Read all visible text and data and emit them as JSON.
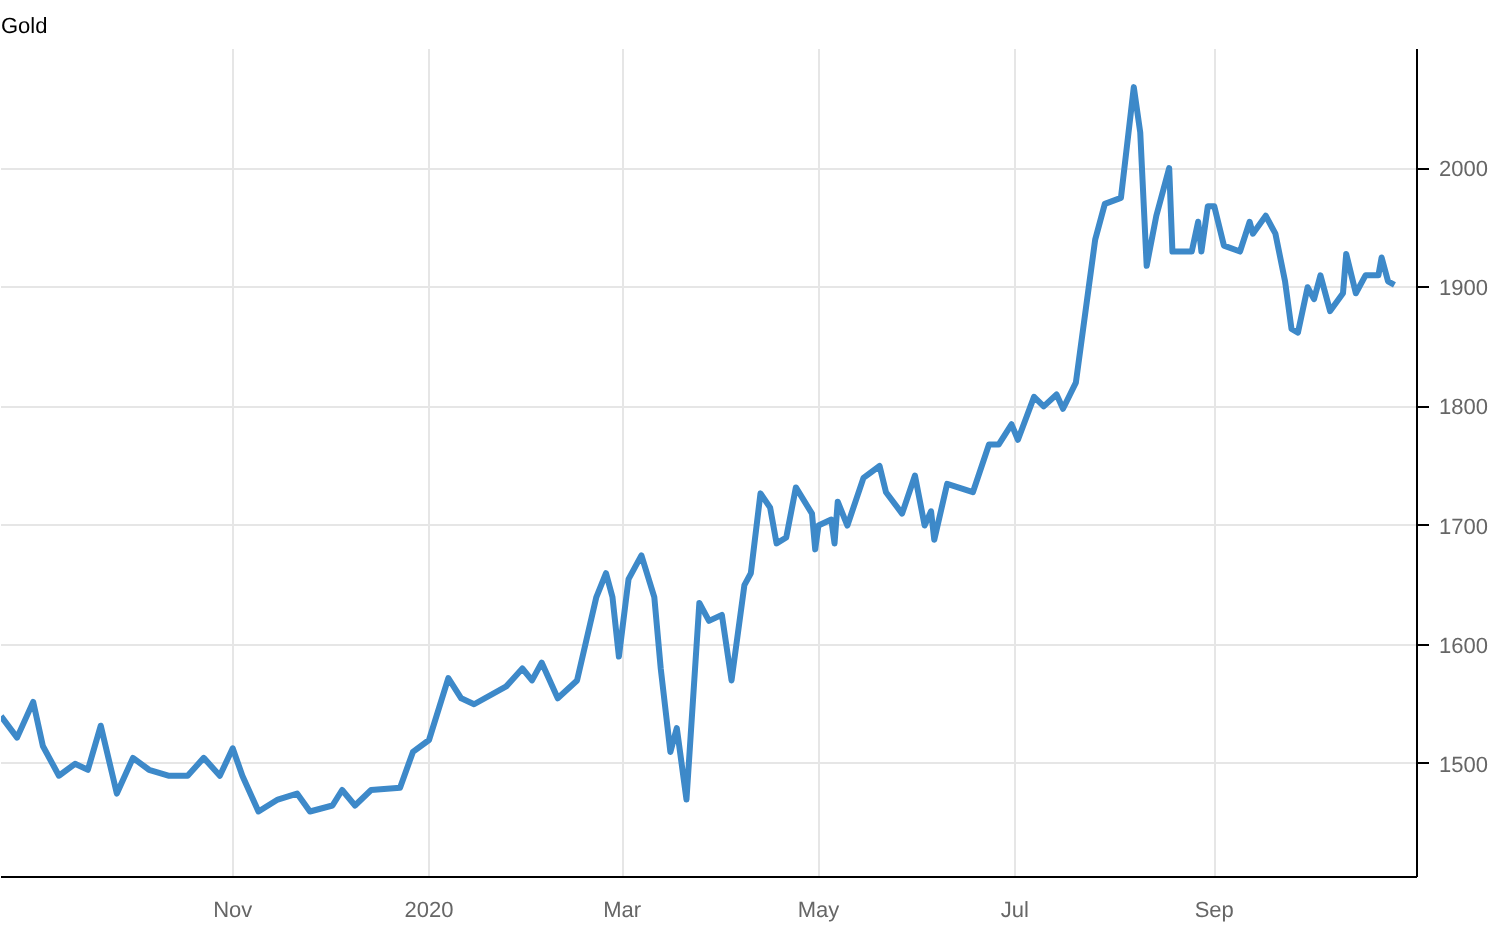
{
  "chart_data": {
    "type": "line",
    "title": "Gold",
    "x": [
      "2019-08-21",
      "2019-08-26",
      "2019-08-31",
      "2019-09-03",
      "2019-09-08",
      "2019-09-13",
      "2019-09-17",
      "2019-09-21",
      "2019-09-26",
      "2019-10-01",
      "2019-10-06",
      "2019-10-12",
      "2019-10-18",
      "2019-10-23",
      "2019-10-28",
      "2019-11-01",
      "2019-11-04",
      "2019-11-09",
      "2019-11-15",
      "2019-11-21",
      "2019-11-25",
      "2019-12-02",
      "2019-12-05",
      "2019-12-09",
      "2019-12-14",
      "2019-12-23",
      "2019-12-27",
      "2020-01-01",
      "2020-01-07",
      "2020-01-11",
      "2020-01-15",
      "2020-01-25",
      "2020-01-30",
      "2020-02-02",
      "2020-02-05",
      "2020-02-10",
      "2020-02-16",
      "2020-02-22",
      "2020-02-25",
      "2020-02-27",
      "2020-02-29",
      "2020-03-03",
      "2020-03-07",
      "2020-03-11",
      "2020-03-13",
      "2020-03-16",
      "2020-03-18",
      "2020-03-21",
      "2020-03-25",
      "2020-03-28",
      "2020-04-01",
      "2020-04-04",
      "2020-04-08",
      "2020-04-10",
      "2020-04-13",
      "2020-04-16",
      "2020-04-18",
      "2020-04-21",
      "2020-04-24",
      "2020-04-29",
      "2020-04-30",
      "2020-05-01",
      "2020-05-05",
      "2020-05-06",
      "2020-05-07",
      "2020-05-10",
      "2020-05-15",
      "2020-05-20",
      "2020-05-22",
      "2020-05-27",
      "2020-05-31",
      "2020-06-03",
      "2020-06-05",
      "2020-06-06",
      "2020-06-10",
      "2020-06-18",
      "2020-06-23",
      "2020-06-26",
      "2020-06-30",
      "2020-07-02",
      "2020-07-07",
      "2020-07-10",
      "2020-07-14",
      "2020-07-16",
      "2020-07-20",
      "2020-07-24",
      "2020-07-26",
      "2020-07-29",
      "2020-08-03",
      "2020-08-07",
      "2020-08-09",
      "2020-08-11",
      "2020-08-14",
      "2020-08-18",
      "2020-08-19",
      "2020-08-25",
      "2020-08-27",
      "2020-08-28",
      "2020-08-30",
      "2020-09-01",
      "2020-09-04",
      "2020-09-09",
      "2020-09-12",
      "2020-09-13",
      "2020-09-17",
      "2020-09-20",
      "2020-09-23",
      "2020-09-25",
      "2020-09-27",
      "2020-09-30",
      "2020-10-02",
      "2020-10-04",
      "2020-10-07",
      "2020-10-11",
      "2020-10-12",
      "2020-10-15",
      "2020-10-18",
      "2020-10-22",
      "2020-10-23",
      "2020-10-25",
      "2020-10-27"
    ],
    "series": [
      {
        "color": "#3d89c9",
        "values": [
          1540,
          1522,
          1552,
          1515,
          1490,
          1500,
          1495,
          1532,
          1475,
          1505,
          1495,
          1490,
          1490,
          1505,
          1490,
          1513,
          1490,
          1460,
          1470,
          1475,
          1460,
          1465,
          1478,
          1465,
          1478,
          1480,
          1510,
          1520,
          1572,
          1555,
          1550,
          1565,
          1580,
          1570,
          1585,
          1555,
          1570,
          1640,
          1660,
          1640,
          1590,
          1655,
          1675,
          1640,
          1580,
          1510,
          1530,
          1470,
          1635,
          1620,
          1625,
          1570,
          1650,
          1660,
          1727,
          1715,
          1685,
          1690,
          1732,
          1710,
          1680,
          1700,
          1705,
          1685,
          1720,
          1700,
          1740,
          1750,
          1728,
          1710,
          1742,
          1700,
          1712,
          1688,
          1735,
          1728,
          1768,
          1768,
          1785,
          1772,
          1808,
          1800,
          1810,
          1798,
          1820,
          1900,
          1940,
          1970,
          1975,
          2068,
          2030,
          1918,
          1960,
          2000,
          1930,
          1930,
          1955,
          1930,
          1968,
          1968,
          1935,
          1930,
          1955,
          1945,
          1960,
          1945,
          1905,
          1865,
          1862,
          1900,
          1890,
          1910,
          1880,
          1895,
          1928,
          1895,
          1910,
          1910,
          1925,
          1905,
          1902
        ]
      }
    ],
    "xlim": [
      "2019-08-21",
      "2020-11-03"
    ],
    "xticks": [
      {
        "value": "2019-11-01",
        "label": "Nov"
      },
      {
        "value": "2020-01-01",
        "label": "2020"
      },
      {
        "value": "2020-03-01",
        "label": "Mar"
      },
      {
        "value": "2020-05-01",
        "label": "May"
      },
      {
        "value": "2020-07-01",
        "label": "Jul"
      },
      {
        "value": "2020-09-01",
        "label": "Sep"
      }
    ],
    "ylim": [
      1405,
      2100
    ],
    "yticks": [
      1500,
      1600,
      1700,
      1800,
      1900,
      2000
    ],
    "grid": true,
    "marker": "none",
    "line_style": "solid"
  }
}
